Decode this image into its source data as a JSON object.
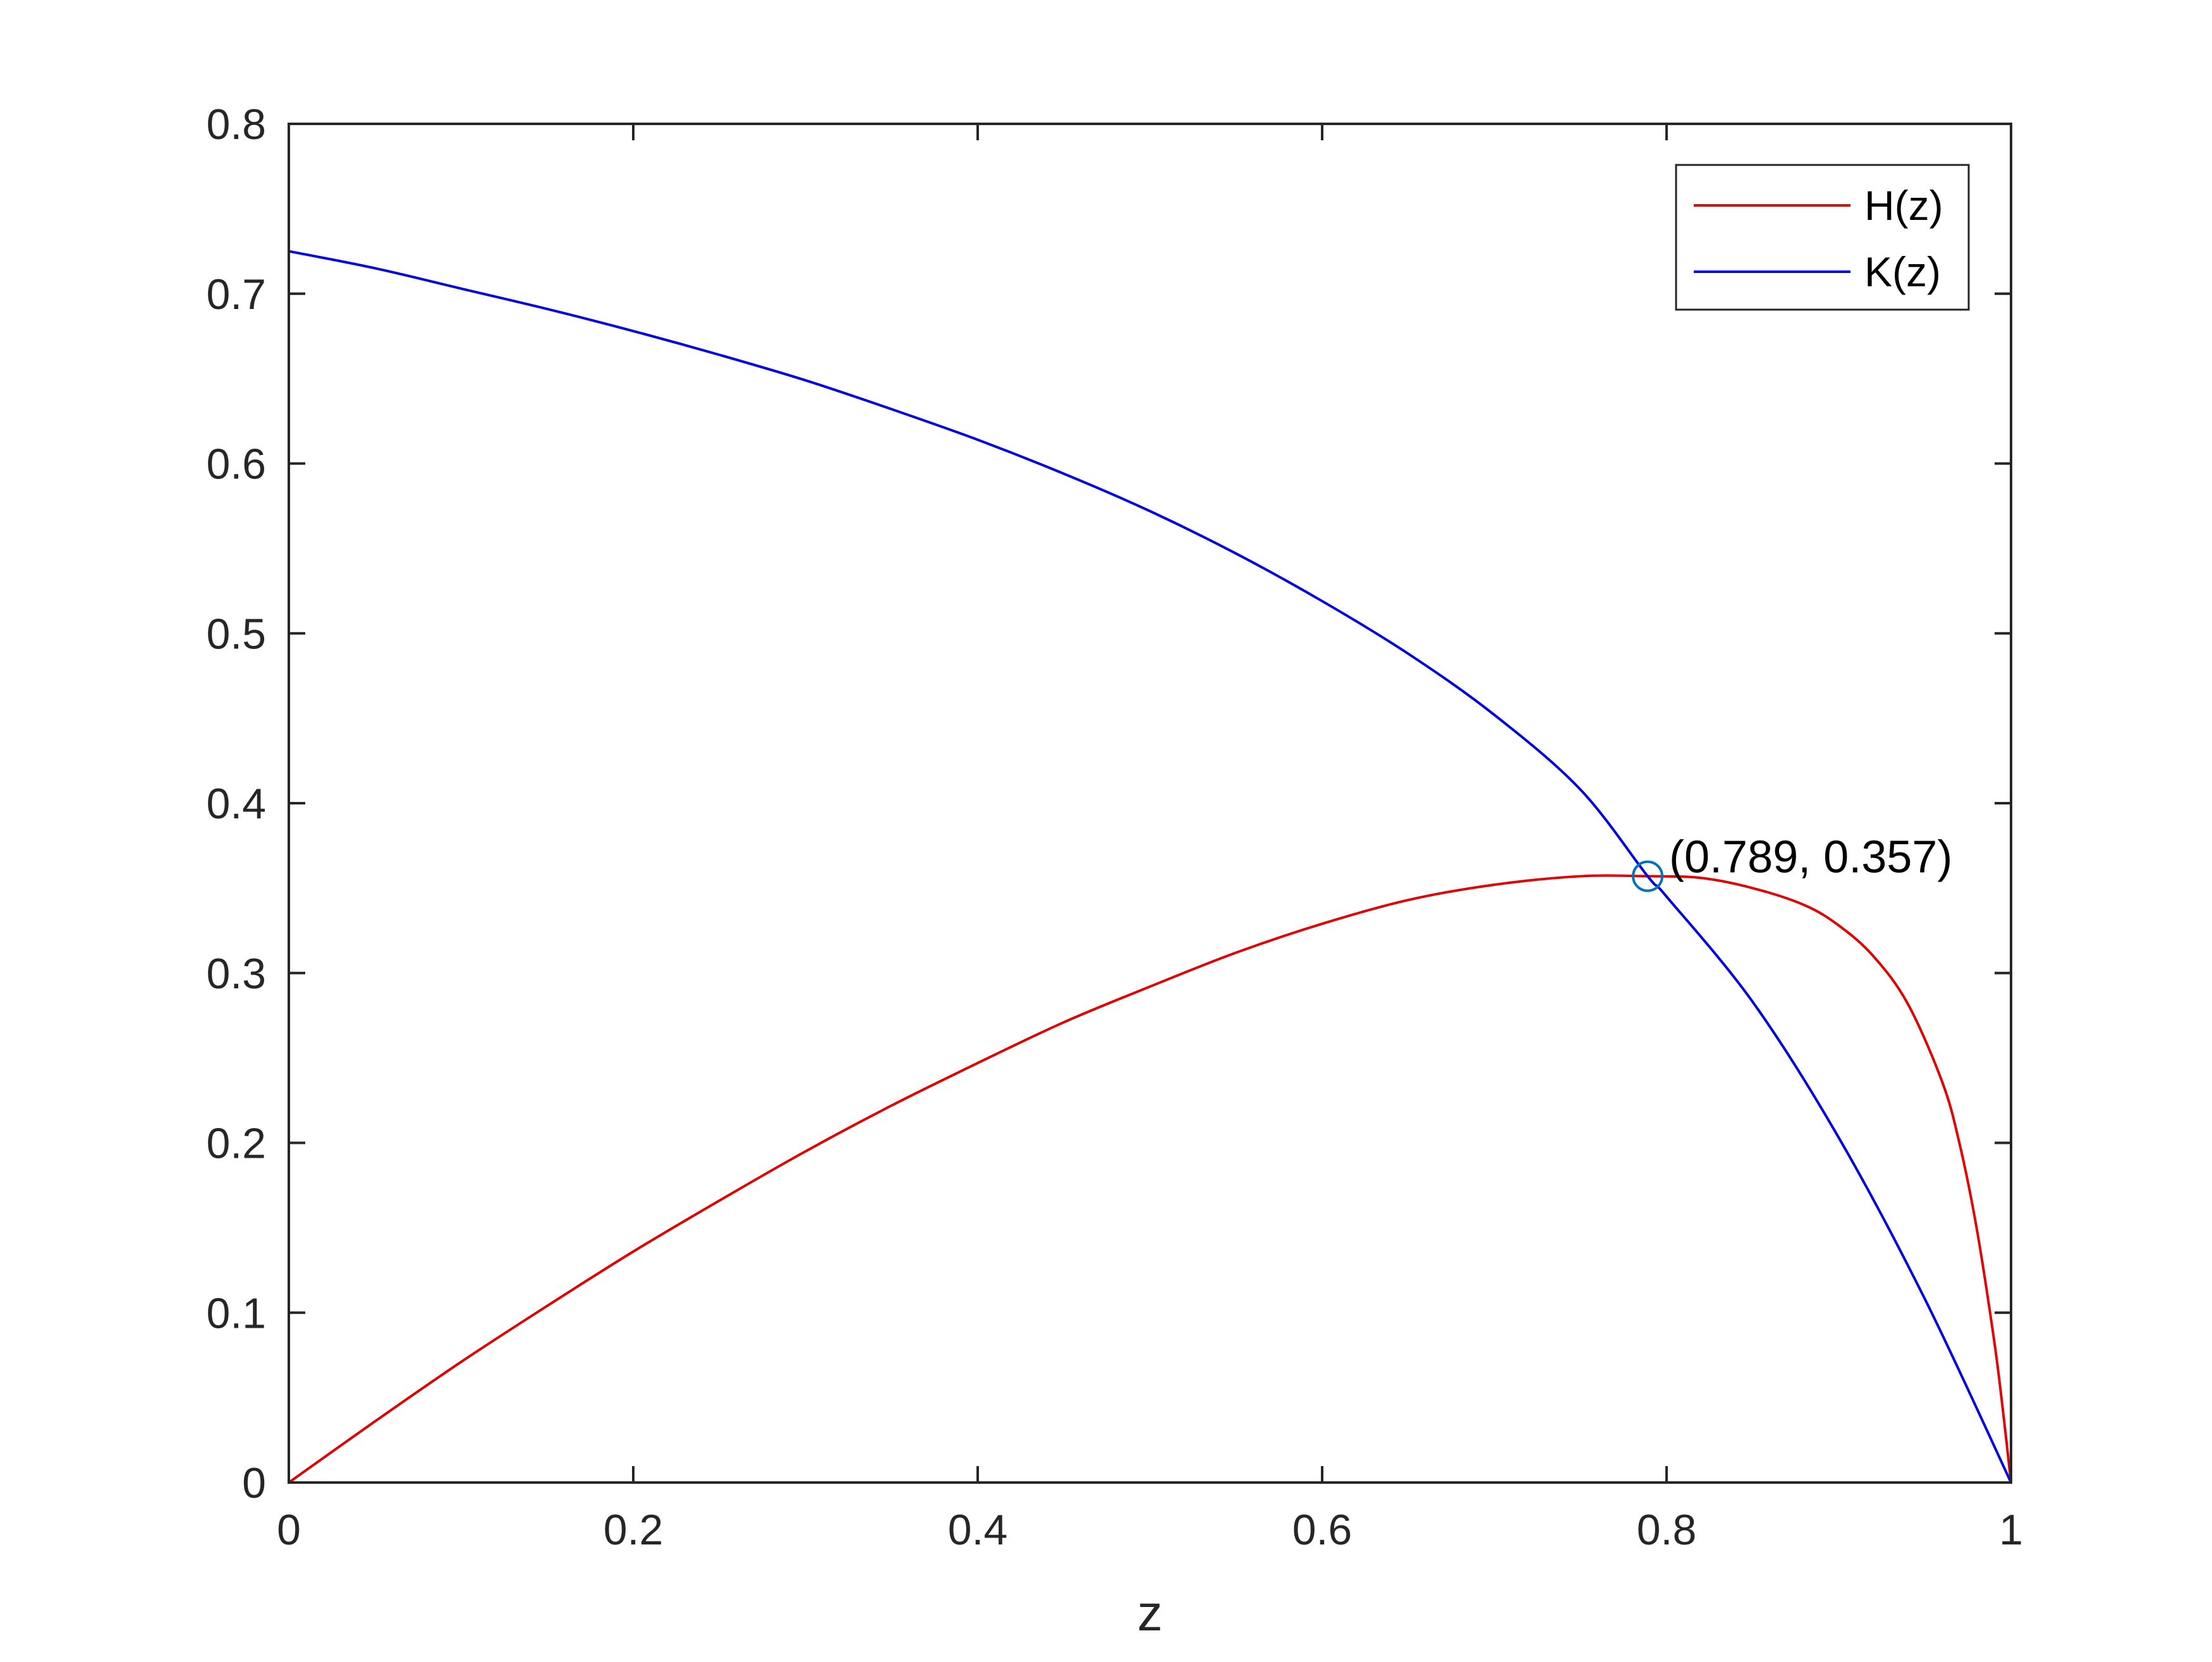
{
  "chart_data": {
    "type": "line",
    "title": "",
    "xlabel": "z",
    "ylabel": "",
    "xlim": [
      0,
      1
    ],
    "ylim": [
      0,
      0.8
    ],
    "xticks": [
      0,
      0.2,
      0.4,
      0.6,
      0.8,
      1
    ],
    "xtick_labels": [
      "0",
      "0.2",
      "0.4",
      "0.6",
      "0.8",
      "1"
    ],
    "yticks": [
      0,
      0.1,
      0.2,
      0.3,
      0.4,
      0.5,
      0.6,
      0.7,
      0.8
    ],
    "ytick_labels": [
      "0",
      "0.1",
      "0.2",
      "0.3",
      "0.4",
      "0.5",
      "0.6",
      "0.7",
      "0.8"
    ],
    "grid": false,
    "legend_position": "top-right",
    "series": [
      {
        "name": "H(z)",
        "color": "#e00000",
        "x": [
          0,
          0.05,
          0.1,
          0.15,
          0.2,
          0.25,
          0.3,
          0.35,
          0.4,
          0.45,
          0.5,
          0.55,
          0.6,
          0.65,
          0.7,
          0.75,
          0.789,
          0.82,
          0.85,
          0.88,
          0.9,
          0.92,
          0.94,
          0.96,
          0.97,
          0.98,
          0.99,
          0.995,
          1.0
        ],
        "y": [
          0,
          0.036,
          0.071,
          0.104,
          0.136,
          0.166,
          0.195,
          0.222,
          0.247,
          0.271,
          0.292,
          0.312,
          0.329,
          0.343,
          0.352,
          0.357,
          0.357,
          0.356,
          0.35,
          0.34,
          0.328,
          0.31,
          0.282,
          0.236,
          0.2,
          0.15,
          0.085,
          0.045,
          0.0
        ]
      },
      {
        "name": "K(z)",
        "color": "#0000e0",
        "x": [
          0,
          0.05,
          0.1,
          0.15,
          0.2,
          0.25,
          0.3,
          0.35,
          0.4,
          0.45,
          0.5,
          0.55,
          0.6,
          0.65,
          0.7,
          0.75,
          0.789,
          0.8,
          0.85,
          0.9,
          0.95,
          1.0
        ],
        "y": [
          0.725,
          0.715,
          0.703,
          0.691,
          0.678,
          0.664,
          0.649,
          0.632,
          0.614,
          0.594,
          0.572,
          0.547,
          0.519,
          0.488,
          0.452,
          0.408,
          0.357,
          0.345,
          0.283,
          0.203,
          0.108,
          0.0
        ]
      }
    ],
    "annotations": [
      {
        "x": 0.789,
        "y": 0.357,
        "text": "(0.789, 0.357)",
        "marker": "circle",
        "color": "#0072bd"
      }
    ]
  }
}
